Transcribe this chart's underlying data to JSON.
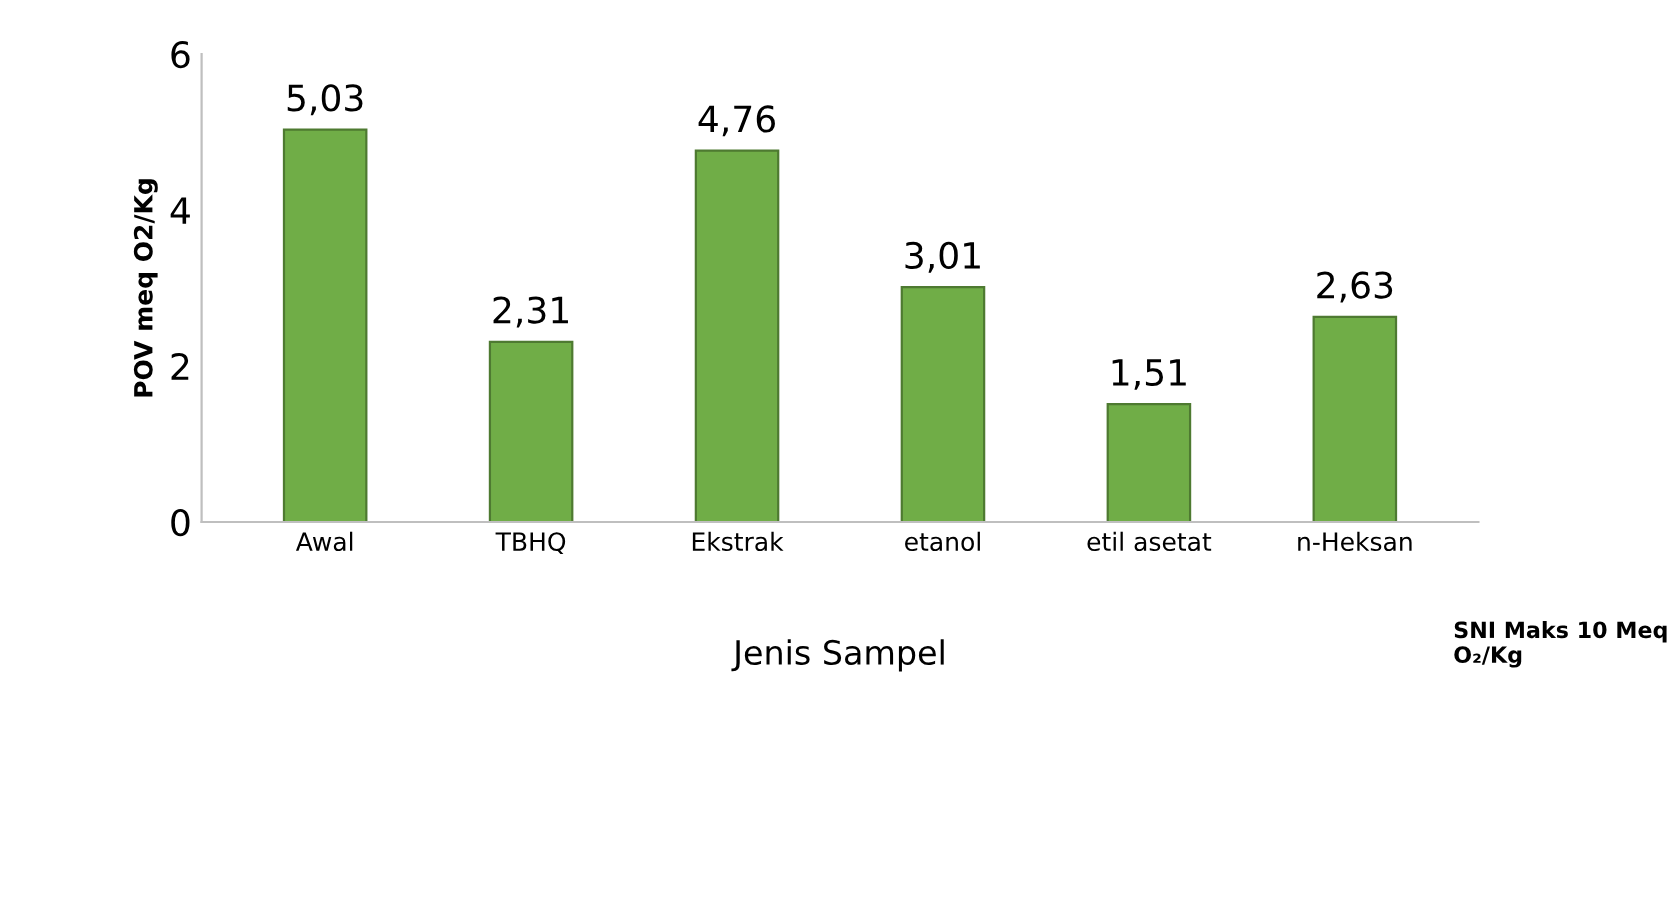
{
  "chart_data": {
    "type": "bar",
    "xlabel": "Jenis Sampel",
    "ylabel": "POV meq O2/Kg",
    "categories": [
      "Awal",
      "TBHQ",
      "Ekstrak",
      "etanol",
      "etil asetat",
      "n-Heksan"
    ],
    "values": [
      5.03,
      2.31,
      4.76,
      3.01,
      1.51,
      2.63
    ],
    "value_labels": [
      "5,03",
      "2,31",
      "4,76",
      "3,01",
      "1,51",
      "2,63"
    ],
    "color": "#70ad47",
    "ylim": [
      0,
      6
    ],
    "yticks": [
      0,
      2,
      4,
      6
    ],
    "grid": false,
    "legend": false,
    "annotations": [
      "SNI Maks 10 Meq O₂/Kg"
    ]
  }
}
